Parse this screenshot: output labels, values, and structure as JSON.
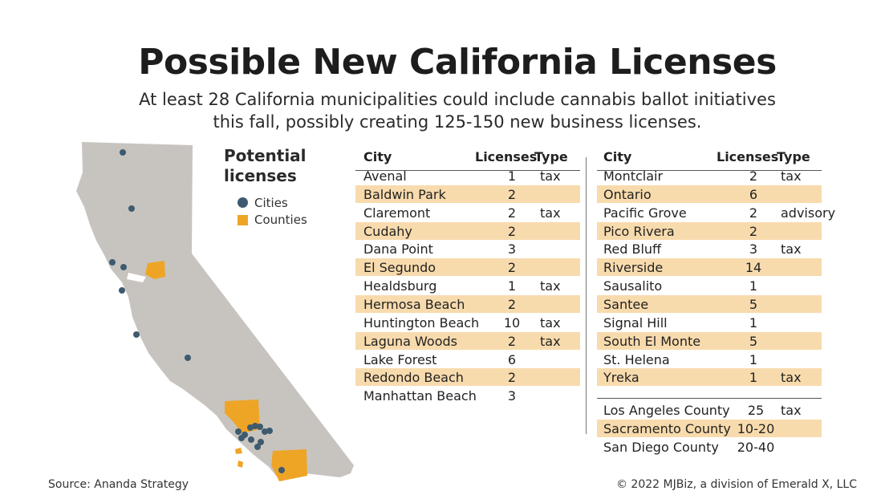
{
  "title": "Possible New California Licenses",
  "subtitle_line1": "At least 28 California municipalities could include cannabis ballot initiatives",
  "subtitle_line2": "this fall, possibly creating 125-150 new business licenses.",
  "legend": {
    "title_line1": "Potential",
    "title_line2": "licenses",
    "cities_label": "Cities",
    "counties_label": "Counties"
  },
  "colors": {
    "state": "#c7c4c0",
    "city_dot": "#3e5a6e",
    "county": "#eea526",
    "shade": "#f8dbad"
  },
  "table_headers": {
    "city": "City",
    "licenses": "Licenses",
    "type": "Type"
  },
  "left_rows": [
    {
      "city": "Avenal",
      "licenses": "1",
      "type": "tax",
      "shade": false
    },
    {
      "city": "Baldwin Park",
      "licenses": "2",
      "type": "",
      "shade": true
    },
    {
      "city": "Claremont",
      "licenses": "2",
      "type": "tax",
      "shade": false
    },
    {
      "city": "Cudahy",
      "licenses": "2",
      "type": "",
      "shade": true
    },
    {
      "city": "Dana Point",
      "licenses": "3",
      "type": "",
      "shade": false
    },
    {
      "city": "El Segundo",
      "licenses": "2",
      "type": "",
      "shade": true
    },
    {
      "city": "Healdsburg",
      "licenses": "1",
      "type": "tax",
      "shade": false
    },
    {
      "city": "Hermosa Beach",
      "licenses": "2",
      "type": "",
      "shade": true
    },
    {
      "city": "Huntington Beach",
      "licenses": "10",
      "type": "tax",
      "shade": false
    },
    {
      "city": "Laguna Woods",
      "licenses": "2",
      "type": "tax",
      "shade": true
    },
    {
      "city": "Lake Forest",
      "licenses": "6",
      "type": "",
      "shade": false
    },
    {
      "city": "Redondo Beach",
      "licenses": "2",
      "type": "",
      "shade": true
    },
    {
      "city": "Manhattan Beach",
      "licenses": "3",
      "type": "",
      "shade": false
    }
  ],
  "right_rows": [
    {
      "city": "Montclair",
      "licenses": "2",
      "type": "tax",
      "shade": false
    },
    {
      "city": "Ontario",
      "licenses": "6",
      "type": "",
      "shade": true
    },
    {
      "city": "Pacific Grove",
      "licenses": "2",
      "type": "advisory",
      "shade": false
    },
    {
      "city": "Pico Rivera",
      "licenses": "2",
      "type": "",
      "shade": true
    },
    {
      "city": "Red Bluff",
      "licenses": "3",
      "type": "tax",
      "shade": false
    },
    {
      "city": "Riverside",
      "licenses": "14",
      "type": "",
      "shade": true
    },
    {
      "city": "Sausalito",
      "licenses": "1",
      "type": "",
      "shade": false
    },
    {
      "city": "Santee",
      "licenses": "5",
      "type": "",
      "shade": true
    },
    {
      "city": "Signal Hill",
      "licenses": "1",
      "type": "",
      "shade": false
    },
    {
      "city": "South El Monte",
      "licenses": "5",
      "type": "",
      "shade": true
    },
    {
      "city": "St. Helena",
      "licenses": "1",
      "type": "",
      "shade": false
    },
    {
      "city": "Yreka",
      "licenses": "1",
      "type": "tax",
      "shade": true
    }
  ],
  "county_rows": [
    {
      "city": "Los Angeles County",
      "licenses": "25",
      "type": "tax",
      "shade": false
    },
    {
      "city": "Sacramento County",
      "licenses": "10-20",
      "type": "",
      "shade": true
    },
    {
      "city": "San Diego County",
      "licenses": "20-40",
      "type": "",
      "shade": false
    }
  ],
  "source": "Source: Ananda Strategy",
  "copyright": "© 2022 MJBiz, a division of Emerald X, LLC"
}
